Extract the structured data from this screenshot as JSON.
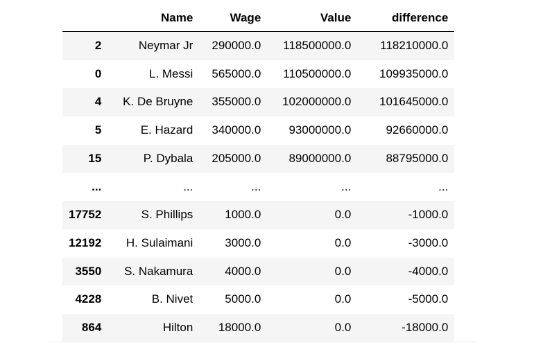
{
  "table": {
    "columns": [
      "",
      "Name",
      "Wage",
      "Value",
      "difference"
    ],
    "rows": [
      {
        "index": "2",
        "name": "Neymar Jr",
        "wage": "290000.0",
        "value": "118500000.0",
        "difference": "118210000.0"
      },
      {
        "index": "0",
        "name": "L. Messi",
        "wage": "565000.0",
        "value": "110500000.0",
        "difference": "109935000.0"
      },
      {
        "index": "4",
        "name": "K. De Bruyne",
        "wage": "355000.0",
        "value": "102000000.0",
        "difference": "101645000.0"
      },
      {
        "index": "5",
        "name": "E. Hazard",
        "wage": "340000.0",
        "value": "93000000.0",
        "difference": "92660000.0"
      },
      {
        "index": "15",
        "name": "P. Dybala",
        "wage": "205000.0",
        "value": "89000000.0",
        "difference": "88795000.0"
      },
      {
        "index": "...",
        "name": "...",
        "wage": "...",
        "value": "...",
        "difference": "..."
      },
      {
        "index": "17752",
        "name": "S. Phillips",
        "wage": "1000.0",
        "value": "0.0",
        "difference": "-1000.0"
      },
      {
        "index": "12192",
        "name": "H. Sulaimani",
        "wage": "3000.0",
        "value": "0.0",
        "difference": "-3000.0"
      },
      {
        "index": "3550",
        "name": "S. Nakamura",
        "wage": "4000.0",
        "value": "0.0",
        "difference": "-4000.0"
      },
      {
        "index": "4228",
        "name": "B. Nivet",
        "wage": "5000.0",
        "value": "0.0",
        "difference": "-5000.0"
      },
      {
        "index": "864",
        "name": "Hilton",
        "wage": "18000.0",
        "value": "0.0",
        "difference": "-18000.0"
      }
    ]
  }
}
